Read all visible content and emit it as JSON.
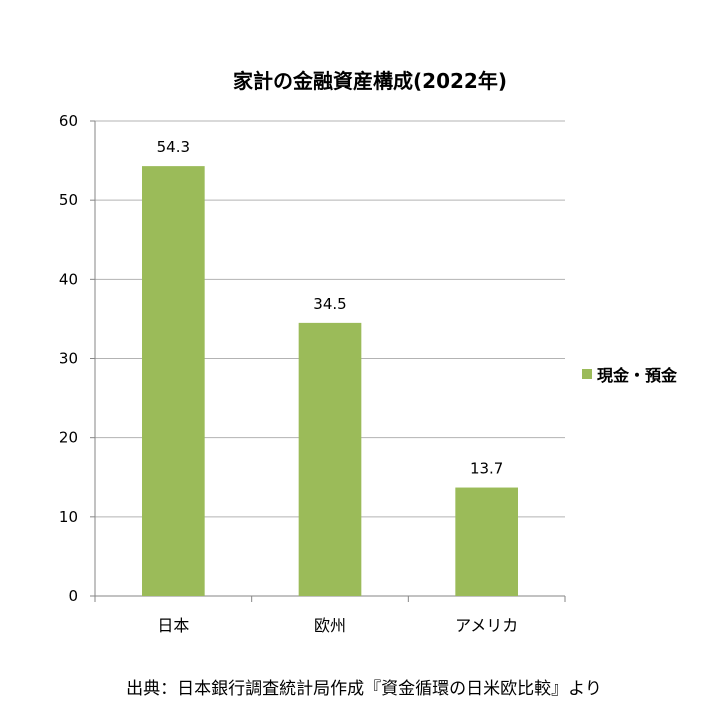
{
  "chart_data": {
    "type": "bar",
    "title": "家計の金融資産構成(2022年)",
    "categories": [
      "日本",
      "欧州",
      "アメリカ"
    ],
    "series": [
      {
        "name": "現金・預金",
        "values": [
          54.3,
          34.5,
          13.7
        ],
        "color": "#9bbb59"
      }
    ],
    "data_labels": [
      "54.3",
      "34.5",
      "13.7"
    ],
    "y_ticks": [
      0,
      10,
      20,
      30,
      40,
      50,
      60
    ],
    "ylim": [
      0,
      60
    ],
    "grid": true,
    "legend_position": "right",
    "xlabel": "",
    "ylabel": ""
  },
  "source_note": "出典：日本銀行調査統計局作成『資金循環の日米欧比較』より",
  "colors": {
    "bar": "#9bbb59",
    "grid": "#b3b3b3",
    "axis": "#868686"
  }
}
